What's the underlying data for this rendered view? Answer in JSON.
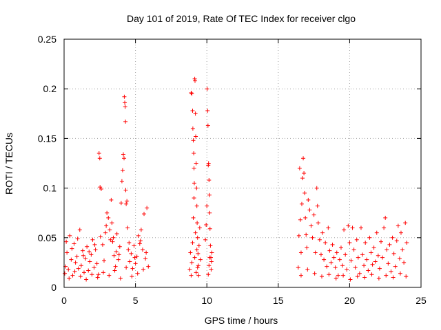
{
  "chart_data": {
    "type": "scatter",
    "title": "Day 101 of 2019, Rate Of TEC Index for receiver clgo",
    "xlabel": "GPS time / hours",
    "ylabel": "ROTI / TECUs",
    "xlim": [
      0,
      25
    ],
    "ylim": [
      0,
      0.25
    ],
    "xticks": [
      0,
      5,
      10,
      15,
      20,
      25
    ],
    "xtick_labels": [
      "0",
      "5",
      "10",
      "15",
      "20",
      "25"
    ],
    "yticks": [
      0,
      0.05,
      0.1,
      0.15,
      0.2,
      0.25
    ],
    "ytick_labels": [
      "0",
      "0.05",
      "0.1",
      "0.15",
      "0.2",
      "0.25"
    ],
    "grid": true,
    "marker": "+",
    "color": "#ff0000",
    "series": [
      {
        "name": "ROTI",
        "points": [
          [
            0.1,
            0.021
          ],
          [
            0.2,
            0.035
          ],
          [
            0.3,
            0.018
          ],
          [
            0.4,
            0.052
          ],
          [
            0.5,
            0.028
          ],
          [
            0.6,
            0.012
          ],
          [
            0.7,
            0.044
          ],
          [
            0.8,
            0.025
          ],
          [
            0.9,
            0.031
          ],
          [
            1.0,
            0.019
          ],
          [
            1.1,
            0.058
          ],
          [
            1.2,
            0.022
          ],
          [
            1.3,
            0.037
          ],
          [
            1.4,
            0.015
          ],
          [
            1.5,
            0.029
          ],
          [
            1.6,
            0.041
          ],
          [
            1.7,
            0.017
          ],
          [
            1.8,
            0.026
          ],
          [
            1.9,
            0.033
          ],
          [
            2.0,
            0.048
          ],
          [
            2.1,
            0.02
          ],
          [
            2.2,
            0.038
          ],
          [
            2.3,
            0.024
          ],
          [
            2.4,
            0.013
          ],
          [
            2.45,
            0.135
          ],
          [
            2.5,
            0.13
          ],
          [
            2.52,
            0.101
          ],
          [
            2.6,
            0.099
          ],
          [
            2.7,
            0.043
          ],
          [
            2.8,
            0.027
          ],
          [
            2.9,
            0.055
          ],
          [
            3.0,
            0.075
          ],
          [
            3.1,
            0.07
          ],
          [
            3.2,
            0.058
          ],
          [
            3.3,
            0.088
          ],
          [
            3.35,
            0.065
          ],
          [
            3.4,
            0.046
          ],
          [
            3.5,
            0.032
          ],
          [
            3.6,
            0.021
          ],
          [
            3.7,
            0.054
          ],
          [
            3.8,
            0.028
          ],
          [
            3.9,
            0.041
          ],
          [
            4.0,
            0.085
          ],
          [
            4.05,
            0.107
          ],
          [
            4.1,
            0.118
          ],
          [
            4.15,
            0.134
          ],
          [
            4.2,
            0.13
          ],
          [
            4.22,
            0.192
          ],
          [
            4.25,
            0.186
          ],
          [
            4.28,
            0.182
          ],
          [
            4.3,
            0.167
          ],
          [
            4.32,
            0.098
          ],
          [
            4.35,
            0.084
          ],
          [
            4.4,
            0.087
          ],
          [
            4.45,
            0.06
          ],
          [
            4.5,
            0.038
          ],
          [
            4.6,
            0.026
          ],
          [
            4.7,
            0.034
          ],
          [
            4.8,
            0.019
          ],
          [
            4.9,
            0.042
          ],
          [
            5.0,
            0.024
          ],
          [
            5.1,
            0.031
          ],
          [
            5.2,
            0.052
          ],
          [
            5.3,
            0.044
          ],
          [
            5.4,
            0.058
          ],
          [
            5.5,
            0.038
          ],
          [
            5.6,
            0.074
          ],
          [
            5.7,
            0.029
          ],
          [
            5.8,
            0.08
          ],
          [
            5.9,
            0.021
          ],
          [
            0.05,
            0.014
          ],
          [
            0.35,
            0.009
          ],
          [
            0.75,
            0.016
          ],
          [
            1.15,
            0.011
          ],
          [
            1.55,
            0.008
          ],
          [
            1.95,
            0.013
          ],
          [
            2.35,
            0.01
          ],
          [
            2.75,
            0.015
          ],
          [
            3.15,
            0.012
          ],
          [
            3.55,
            0.017
          ],
          [
            3.95,
            0.009
          ],
          [
            4.35,
            0.02
          ],
          [
            4.75,
            0.011
          ],
          [
            5.15,
            0.014
          ],
          [
            5.55,
            0.018
          ],
          [
            0.15,
            0.046
          ],
          [
            0.55,
            0.039
          ],
          [
            0.95,
            0.049
          ],
          [
            1.35,
            0.032
          ],
          [
            1.75,
            0.036
          ],
          [
            2.15,
            0.043
          ],
          [
            2.55,
            0.051
          ],
          [
            2.95,
            0.062
          ],
          [
            3.25,
            0.048
          ],
          [
            3.45,
            0.05
          ],
          [
            3.65,
            0.036
          ],
          [
            3.85,
            0.033
          ],
          [
            4.55,
            0.045
          ],
          [
            4.95,
            0.03
          ],
          [
            5.35,
            0.047
          ],
          [
            5.75,
            0.035
          ],
          [
            8.8,
            0.018
          ],
          [
            8.85,
            0.035
          ],
          [
            8.9,
            0.196
          ],
          [
            8.95,
            0.195
          ],
          [
            9.0,
            0.178
          ],
          [
            9.02,
            0.16
          ],
          [
            9.05,
            0.148
          ],
          [
            9.08,
            0.135
          ],
          [
            9.1,
            0.12
          ],
          [
            9.12,
            0.105
          ],
          [
            9.15,
            0.21
          ],
          [
            9.17,
            0.208
          ],
          [
            9.2,
            0.175
          ],
          [
            9.22,
            0.152
          ],
          [
            9.25,
            0.125
          ],
          [
            9.28,
            0.1
          ],
          [
            9.3,
            0.082
          ],
          [
            9.32,
            0.065
          ],
          [
            9.35,
            0.05
          ],
          [
            9.38,
            0.034
          ],
          [
            9.4,
            0.022
          ],
          [
            9.42,
            0.012
          ],
          [
            9.45,
            0.042
          ],
          [
            9.5,
            0.06
          ],
          [
            9.55,
            0.028
          ],
          [
            8.9,
            0.012
          ],
          [
            8.95,
            0.025
          ],
          [
            9.0,
            0.045
          ],
          [
            9.05,
            0.07
          ],
          [
            9.1,
            0.09
          ],
          [
            9.15,
            0.03
          ],
          [
            9.2,
            0.055
          ],
          [
            9.25,
            0.015
          ],
          [
            9.3,
            0.038
          ],
          [
            9.35,
            0.02
          ],
          [
            9.9,
            0.048
          ],
          [
            9.95,
            0.063
          ],
          [
            10.0,
            0.082
          ],
          [
            10.02,
            0.2
          ],
          [
            10.05,
            0.178
          ],
          [
            10.08,
            0.163
          ],
          [
            10.1,
            0.123
          ],
          [
            10.12,
            0.125
          ],
          [
            10.15,
            0.108
          ],
          [
            10.18,
            0.093
          ],
          [
            10.2,
            0.075
          ],
          [
            10.22,
            0.059
          ],
          [
            10.25,
            0.042
          ],
          [
            10.28,
            0.03
          ],
          [
            10.3,
            0.018
          ],
          [
            10.32,
            0.026
          ],
          [
            10.35,
            0.035
          ],
          [
            10.1,
            0.013
          ],
          [
            10.15,
            0.022
          ],
          [
            10.2,
            0.03
          ],
          [
            16.4,
            0.02
          ],
          [
            16.45,
            0.052
          ],
          [
            16.5,
            0.12
          ],
          [
            16.55,
            0.068
          ],
          [
            16.6,
            0.035
          ],
          [
            16.65,
            0.084
          ],
          [
            16.7,
            0.11
          ],
          [
            16.75,
            0.13
          ],
          [
            16.8,
            0.115
          ],
          [
            16.85,
            0.095
          ],
          [
            16.9,
            0.07
          ],
          [
            16.95,
            0.053
          ],
          [
            17.0,
            0.04
          ],
          [
            17.1,
            0.088
          ],
          [
            17.2,
            0.078
          ],
          [
            17.3,
            0.062
          ],
          [
            17.4,
            0.05
          ],
          [
            17.5,
            0.073
          ],
          [
            17.6,
            0.035
          ],
          [
            17.7,
            0.1
          ],
          [
            17.75,
            0.082
          ],
          [
            17.8,
            0.065
          ],
          [
            17.9,
            0.048
          ],
          [
            18.0,
            0.033
          ],
          [
            18.1,
            0.055
          ],
          [
            18.2,
            0.028
          ],
          [
            18.3,
            0.045
          ],
          [
            18.4,
            0.021
          ],
          [
            18.5,
            0.06
          ],
          [
            18.6,
            0.037
          ],
          [
            18.7,
            0.025
          ],
          [
            18.8,
            0.043
          ],
          [
            18.9,
            0.03
          ],
          [
            19.0,
            0.02
          ],
          [
            19.1,
            0.035
          ],
          [
            19.2,
            0.012
          ],
          [
            19.3,
            0.028
          ],
          [
            19.4,
            0.04
          ],
          [
            19.5,
            0.022
          ],
          [
            19.6,
            0.058
          ],
          [
            19.7,
            0.033
          ],
          [
            19.8,
            0.018
          ],
          [
            19.9,
            0.062
          ],
          [
            20.0,
            0.045
          ],
          [
            20.1,
            0.027
          ],
          [
            20.2,
            0.06
          ],
          [
            20.3,
            0.038
          ],
          [
            20.4,
            0.02
          ],
          [
            20.5,
            0.048
          ],
          [
            20.6,
            0.03
          ],
          [
            20.7,
            0.014
          ],
          [
            20.8,
            0.06
          ],
          [
            20.9,
            0.033
          ],
          [
            21.0,
            0.022
          ],
          [
            21.1,
            0.045
          ],
          [
            21.2,
            0.028
          ],
          [
            21.3,
            0.017
          ],
          [
            21.4,
            0.05
          ],
          [
            21.5,
            0.035
          ],
          [
            21.6,
            0.023
          ],
          [
            21.7,
            0.04
          ],
          [
            21.8,
            0.026
          ],
          [
            21.9,
            0.055
          ],
          [
            22.0,
            0.032
          ],
          [
            22.1,
            0.019
          ],
          [
            22.2,
            0.046
          ],
          [
            22.3,
            0.03
          ],
          [
            22.4,
            0.06
          ],
          [
            22.5,
            0.07
          ],
          [
            22.6,
            0.038
          ],
          [
            22.7,
            0.024
          ],
          [
            22.8,
            0.043
          ],
          [
            22.9,
            0.016
          ],
          [
            23.0,
            0.05
          ],
          [
            23.1,
            0.034
          ],
          [
            23.2,
            0.021
          ],
          [
            23.3,
            0.047
          ],
          [
            23.4,
            0.062
          ],
          [
            23.5,
            0.029
          ],
          [
            23.6,
            0.055
          ],
          [
            23.7,
            0.038
          ],
          [
            23.8,
            0.025
          ],
          [
            23.9,
            0.065
          ],
          [
            24.0,
            0.045
          ],
          [
            16.6,
            0.012
          ],
          [
            17.05,
            0.018
          ],
          [
            17.55,
            0.014
          ],
          [
            18.05,
            0.011
          ],
          [
            18.55,
            0.013
          ],
          [
            19.05,
            0.009
          ],
          [
            19.55,
            0.012
          ],
          [
            20.05,
            0.008
          ],
          [
            20.55,
            0.011
          ],
          [
            21.05,
            0.01
          ],
          [
            21.55,
            0.013
          ],
          [
            22.05,
            0.009
          ],
          [
            22.55,
            0.012
          ],
          [
            23.05,
            0.01
          ],
          [
            23.55,
            0.014
          ],
          [
            23.95,
            0.011
          ]
        ]
      }
    ]
  }
}
